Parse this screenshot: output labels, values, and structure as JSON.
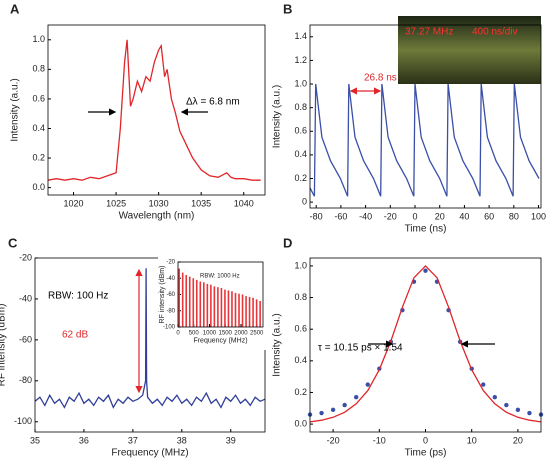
{
  "chart_data": [
    {
      "panel": "A",
      "type": "line",
      "xlabel": "Wavelength (nm)",
      "ylabel": "Intensity (a.u.)",
      "x": [
        1017,
        1018,
        1019,
        1020,
        1021,
        1022,
        1023,
        1024,
        1025,
        1025.5,
        1026,
        1026.3,
        1026.7,
        1027,
        1027.5,
        1028,
        1028.5,
        1029,
        1029.5,
        1030,
        1030.3,
        1030.7,
        1031,
        1031.5,
        1032,
        1032.5,
        1033,
        1033.5,
        1034,
        1035,
        1036,
        1037,
        1038,
        1038.5,
        1039,
        1040,
        1041,
        1042
      ],
      "series": [
        {
          "color": "#e0262a",
          "values": [
            0.05,
            0.06,
            0.05,
            0.06,
            0.05,
            0.07,
            0.06,
            0.08,
            0.1,
            0.4,
            0.85,
            1.0,
            0.55,
            0.6,
            0.72,
            0.65,
            0.75,
            0.72,
            0.85,
            0.93,
            0.96,
            0.75,
            0.8,
            0.6,
            0.5,
            0.38,
            0.32,
            0.26,
            0.2,
            0.12,
            0.08,
            0.07,
            0.1,
            0.07,
            0.06,
            0.06,
            0.05,
            0.05
          ]
        }
      ],
      "xlim": [
        1017,
        1042.5
      ],
      "ylim": [
        -0.05,
        1.1
      ],
      "xticks": [
        1020,
        1025,
        1030,
        1035,
        1040
      ],
      "yticks": [
        {
          "value": 0,
          "label": "0.0"
        },
        0.2,
        0.4,
        0.6,
        0.8,
        {
          "value": 1,
          "label": "1.0"
        }
      ],
      "annotations": [
        "Δλ = 6.8 nm"
      ]
    },
    {
      "panel": "B",
      "type": "line",
      "xlabel": "Time (ns)",
      "ylabel": "Intensity (a.u.)",
      "x": [
        -85,
        -81.4,
        -80.4,
        -75.4,
        -68.4,
        -60.4,
        -54.6,
        -53.6,
        -48.6,
        -41.6,
        -33.6,
        -27.8,
        -26.8,
        -21.8,
        -14.8,
        -6.8,
        -1,
        0,
        5,
        12,
        20,
        25.8,
        26.8,
        31.8,
        38.8,
        46.8,
        52.6,
        53.6,
        58.6,
        65.6,
        73.6,
        79.4,
        80.4,
        85.4,
        92.4,
        100.4
      ],
      "series": [
        {
          "color": "#3a4fa8",
          "values": [
            0.12,
            0.05,
            1.0,
            0.55,
            0.35,
            0.2,
            0.05,
            1.0,
            0.55,
            0.35,
            0.2,
            0.05,
            1.0,
            0.55,
            0.35,
            0.2,
            0.05,
            1.0,
            0.55,
            0.35,
            0.2,
            0.05,
            1.0,
            0.55,
            0.35,
            0.2,
            0.05,
            1.0,
            0.55,
            0.35,
            0.2,
            0.05,
            1.0,
            0.55,
            0.35,
            0.2
          ]
        }
      ],
      "xlim": [
        -85,
        102
      ],
      "ylim": [
        -0.05,
        1.5
      ],
      "xticks": [
        -80,
        -60,
        -40,
        -20,
        0,
        20,
        40,
        60,
        80,
        100
      ],
      "yticks": [
        0,
        0.2,
        0.4,
        0.6,
        0.8,
        {
          "value": 1,
          "label": "1.0"
        },
        1.2,
        1.4
      ],
      "annotations": [
        "26.8 ns",
        "37.27 MHz",
        "400 ns/div"
      ]
    },
    {
      "panel": "C",
      "type": "line",
      "xlabel": "Frequency (MHz)",
      "ylabel": "RF intensity (dBm)",
      "x": [
        35.0,
        35.1,
        35.2,
        35.3,
        35.4,
        35.5,
        35.6,
        35.7,
        35.8,
        35.9,
        36.0,
        36.1,
        36.2,
        36.3,
        36.4,
        36.5,
        36.6,
        36.7,
        36.8,
        36.9,
        37.0,
        37.1,
        37.2,
        37.26,
        37.27,
        37.28,
        37.3,
        37.4,
        37.5,
        37.6,
        37.7,
        37.8,
        37.9,
        38.0,
        38.1,
        38.2,
        38.3,
        38.4,
        38.5,
        38.6,
        38.7,
        38.8,
        38.9,
        39.0,
        39.1,
        39.2,
        39.3,
        39.4,
        39.5,
        39.6,
        39.7
      ],
      "series": [
        {
          "color": "#2f3f9a",
          "values": [
            -90,
            -88,
            -92,
            -87,
            -91,
            -89,
            -93,
            -88,
            -90,
            -86,
            -91,
            -89,
            -92,
            -88,
            -90,
            -87,
            -93,
            -89,
            -91,
            -88,
            -90,
            -89,
            -87,
            -80,
            -25,
            -80,
            -88,
            -91,
            -89,
            -92,
            -88,
            -90,
            -87,
            -91,
            -89,
            -92,
            -88,
            -90,
            -86,
            -91,
            -89,
            -93,
            -88,
            -90,
            -87,
            -91,
            -89,
            -92,
            -88,
            -90,
            -89
          ]
        }
      ],
      "xlim": [
        35,
        39.7
      ],
      "ylim": [
        -105,
        -20
      ],
      "xticks": [
        35,
        36,
        37,
        38,
        39
      ],
      "yticks": [
        -20,
        -40,
        -60,
        -80,
        -100
      ],
      "annotations": [
        "RBW: 100 Hz",
        "62 dB"
      ]
    },
    {
      "type": "bar",
      "xlabel": "Frequency (MHz)",
      "ylabel": "RF intensity (dBm)",
      "x": [
        37,
        149,
        261,
        373,
        485,
        596,
        708,
        820,
        932,
        1044,
        1155,
        1267,
        1379,
        1491,
        1603,
        1714,
        1826,
        1938,
        2050,
        2162,
        2273,
        2385,
        2497,
        2609
      ],
      "series": [
        {
          "color": "#e8353a",
          "values": [
            -28,
            -33,
            -36,
            -38,
            -40,
            -42,
            -44,
            -45,
            -47,
            -48,
            -50,
            -51,
            -52,
            -54,
            -55,
            -56,
            -58,
            -59,
            -60,
            -62,
            -63,
            -64,
            -66,
            -68
          ]
        }
      ],
      "xlim": [
        0,
        2700
      ],
      "ylim": [
        -100,
        -20
      ],
      "xticks": [
        0,
        500,
        1000,
        1500,
        2000,
        2500
      ],
      "yticks": [
        -20,
        -40,
        -60,
        -80,
        -100
      ],
      "annotations": [
        "RBW: 1000 Hz"
      ]
    },
    {
      "panel": "D",
      "type": "line",
      "xlabel": "Time (ps)",
      "ylabel": "Intensity (a.u.)",
      "x": [
        -25,
        -22.5,
        -20,
        -17.5,
        -15,
        -12.5,
        -10,
        -7.5,
        -5,
        -2.5,
        0,
        2.5,
        5,
        7.5,
        10,
        12.5,
        15,
        17.5,
        20,
        22.5,
        25
      ],
      "series": [
        {
          "type": "scatter",
          "color": "#3a4fa8",
          "values": [
            0.06,
            0.07,
            0.09,
            0.12,
            0.17,
            0.25,
            0.35,
            0.52,
            0.72,
            0.9,
            0.97,
            0.9,
            0.72,
            0.52,
            0.35,
            0.25,
            0.17,
            0.12,
            0.09,
            0.07,
            0.06
          ]
        },
        {
          "type": "line",
          "color": "#e0262a",
          "values": [
            0.0141,
            0.0247,
            0.043,
            0.0747,
            0.128,
            0.212,
            0.344,
            0.525,
            0.739,
            0.925,
            1.0,
            0.925,
            0.739,
            0.525,
            0.344,
            0.212,
            0.128,
            0.0747,
            0.043,
            0.0247,
            0.0141
          ]
        }
      ],
      "xlim": [
        -25,
        25
      ],
      "ylim": [
        -0.05,
        1.05
      ],
      "xticks": [
        -20,
        -10,
        0,
        10,
        20
      ],
      "yticks": [
        {
          "value": 0,
          "label": "0.0"
        },
        0.2,
        0.4,
        0.6,
        0.8,
        {
          "value": 1,
          "label": "1.0"
        }
      ],
      "annotations": [
        "τ = 10.15 ps × 1.54"
      ]
    }
  ]
}
